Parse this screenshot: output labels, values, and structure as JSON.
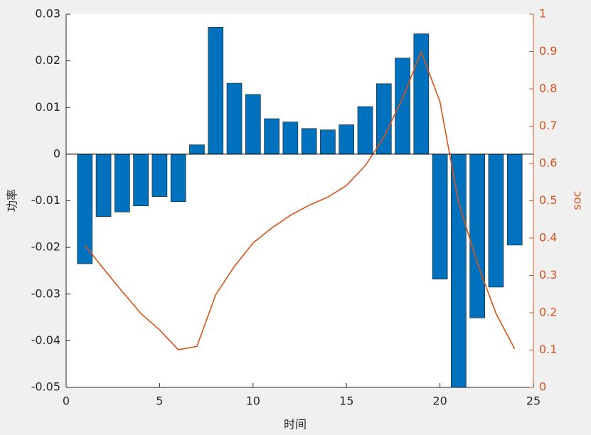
{
  "chart_data": {
    "type": "bar_line",
    "x_label": "时间",
    "y_label": "功率",
    "y2_label": "soc",
    "x": [
      1,
      2,
      3,
      4,
      5,
      6,
      7,
      8,
      9,
      10,
      11,
      12,
      13,
      14,
      15,
      16,
      17,
      18,
      19,
      20,
      21,
      22,
      23,
      24
    ],
    "series": [
      {
        "name": "功率",
        "type": "bar",
        "color": "#0072bd",
        "values": [
          -0.0235,
          -0.0134,
          -0.0124,
          -0.0111,
          -0.0091,
          -0.0102,
          0.002,
          0.0272,
          0.0152,
          0.0128,
          0.0076,
          0.0069,
          0.0055,
          0.0052,
          0.0063,
          0.0102,
          0.0151,
          0.0206,
          0.0258,
          -0.0268,
          -0.052,
          -0.0351,
          -0.0285,
          -0.0195
        ]
      },
      {
        "name": "soc",
        "type": "line",
        "axis": "y2",
        "color": "#d95319",
        "values": [
          0.381,
          0.318,
          0.257,
          0.198,
          0.154,
          0.101,
          0.11,
          0.248,
          0.324,
          0.387,
          0.427,
          0.461,
          0.488,
          0.51,
          0.541,
          0.594,
          0.67,
          0.775,
          0.899,
          0.766,
          0.495,
          0.333,
          0.198,
          0.103
        ]
      }
    ],
    "xlim": [
      0,
      25
    ],
    "xticks": [
      0,
      5,
      10,
      15,
      20,
      25
    ],
    "ylim": [
      -0.05,
      0.03
    ],
    "yticks": [
      -0.05,
      -0.04,
      -0.03,
      -0.02,
      -0.01,
      0,
      0.01,
      0.02,
      0.03
    ],
    "y2lim": [
      0,
      1
    ],
    "y2ticks": [
      0,
      0.1,
      0.2,
      0.3,
      0.4,
      0.5,
      0.6,
      0.7,
      0.8,
      0.9,
      1
    ]
  }
}
